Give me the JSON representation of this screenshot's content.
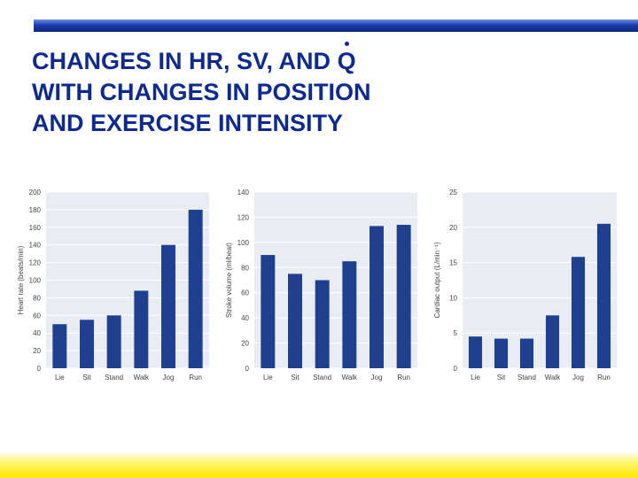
{
  "title": {
    "line1_prefix": "CHANGES IN HR, SV, AND ",
    "line1_q": "Q",
    "line2": "WITH CHANGES IN POSITION",
    "line3": "AND EXERCISE INTENSITY"
  },
  "chart_data": [
    {
      "type": "bar",
      "categories": [
        "Lie",
        "Sit",
        "Stand",
        "Walk",
        "Jog",
        "Run"
      ],
      "values": [
        50,
        55,
        60,
        88,
        140,
        180
      ],
      "ylabel": "Heart rate (beats/min)",
      "ylim": [
        0,
        200
      ],
      "yticks": [
        0,
        20,
        40,
        60,
        80,
        100,
        120,
        140,
        160,
        180,
        200
      ],
      "grid": true,
      "bar_color": "#1f3f8f"
    },
    {
      "type": "bar",
      "categories": [
        "Lie",
        "Sit",
        "Stand",
        "Walk",
        "Jog",
        "Run"
      ],
      "values": [
        90,
        75,
        70,
        85,
        113,
        114
      ],
      "ylabel": "Stroke volume (ml/beat)",
      "ylim": [
        0,
        140
      ],
      "yticks": [
        0,
        20,
        40,
        60,
        80,
        100,
        120,
        140
      ],
      "grid": true,
      "bar_color": "#1f3f8f"
    },
    {
      "type": "bar",
      "categories": [
        "Lie",
        "Sit",
        "Stand",
        "Walk",
        "Jog",
        "Run"
      ],
      "values": [
        4.5,
        4.2,
        4.2,
        7.5,
        15.8,
        20.5
      ],
      "ylabel": "Cardiac output (L/min⁻¹)",
      "ylim": [
        0,
        25
      ],
      "yticks": [
        0,
        5,
        10,
        15,
        20,
        25
      ],
      "grid": true,
      "bar_color": "#1f3f8f"
    }
  ]
}
